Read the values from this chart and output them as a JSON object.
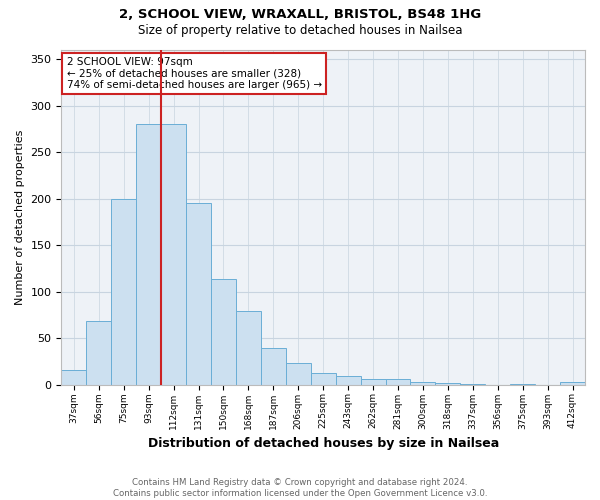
{
  "title1": "2, SCHOOL VIEW, WRAXALL, BRISTOL, BS48 1HG",
  "title2": "Size of property relative to detached houses in Nailsea",
  "xlabel": "Distribution of detached houses by size in Nailsea",
  "ylabel": "Number of detached properties",
  "footer1": "Contains HM Land Registry data © Crown copyright and database right 2024.",
  "footer2": "Contains public sector information licensed under the Open Government Licence v3.0.",
  "annotation_line1": "2 SCHOOL VIEW: 97sqm",
  "annotation_line2": "← 25% of detached houses are smaller (328)",
  "annotation_line3": "74% of semi-detached houses are larger (965) →",
  "bar_color": "#cce0f0",
  "bar_edge_color": "#6aaed6",
  "vline_color": "#cc2222",
  "vline_x": 3.5,
  "categories": [
    "37sqm",
    "56sqm",
    "75sqm",
    "93sqm",
    "112sqm",
    "131sqm",
    "150sqm",
    "168sqm",
    "187sqm",
    "206sqm",
    "225sqm",
    "243sqm",
    "262sqm",
    "281sqm",
    "300sqm",
    "318sqm",
    "337sqm",
    "356sqm",
    "375sqm",
    "393sqm",
    "412sqm"
  ],
  "values": [
    16,
    68,
    200,
    280,
    280,
    195,
    114,
    79,
    39,
    23,
    13,
    9,
    6,
    6,
    3,
    2,
    1,
    0,
    1,
    0,
    3
  ],
  "ylim": [
    0,
    360
  ],
  "yticks": [
    0,
    50,
    100,
    150,
    200,
    250,
    300,
    350
  ],
  "grid_color": "#c8d4e0",
  "background_color": "#eef2f7"
}
